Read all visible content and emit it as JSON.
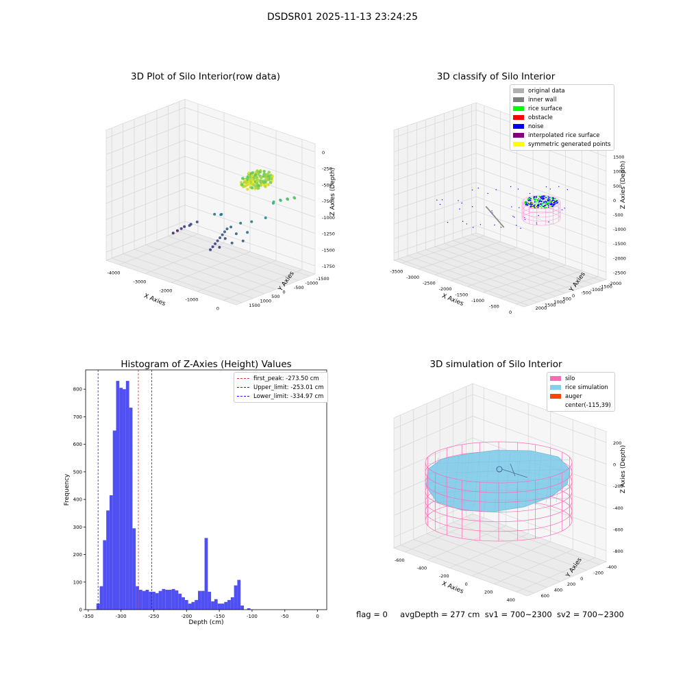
{
  "figure": {
    "suptitle": "DSDSR01 2025-11-13 23:24:25"
  },
  "colors": {
    "hist_bar": "#5050f2",
    "first_peak_line": "#e03030",
    "limit_line": "#2020e0",
    "pane": "#f2f2f2",
    "grid": "#d9d9d9",
    "silo": "#ff69b4",
    "rice": "#87ceeb",
    "auger": "#ff4500"
  },
  "chart_data": [
    {
      "id": "raw3d",
      "type": "scatter",
      "title": "3D Plot of Silo Interior(row data)",
      "xlabel": "X Axies",
      "ylabel": "Y Axies",
      "zlabel": "Z Axies (Depth)",
      "x_ticks": [
        "-4000",
        "-3000",
        "-2000",
        "-1000",
        "0"
      ],
      "y_ticks": [
        "-1500",
        "-1000",
        "-500",
        "0",
        "500",
        "1000",
        "1500"
      ],
      "z_ticks": [
        "-1750",
        "-1500",
        "-1250",
        "-1000",
        "-750",
        "-500",
        "-250",
        "0"
      ],
      "xlim": [
        -4200,
        300
      ],
      "ylim": [
        -1600,
        1700
      ],
      "zlim": [
        -1850,
        50
      ],
      "colormap": "viridis",
      "points": [
        [
          -3800,
          900,
          -1700
        ],
        [
          -3600,
          950,
          -1620
        ],
        [
          -3400,
          980,
          -1560
        ],
        [
          -3200,
          1000,
          -1500
        ],
        [
          -3700,
          600,
          -1680
        ],
        [
          -3500,
          700,
          -1600
        ],
        [
          -3300,
          800,
          -1540
        ],
        [
          -2600,
          1000,
          -1300
        ],
        [
          -2400,
          1050,
          -1280
        ],
        [
          -2300,
          900,
          -1250
        ],
        [
          -2000,
          800,
          -1400
        ],
        [
          -2000,
          700,
          -1430
        ],
        [
          -2000,
          600,
          -1460
        ],
        [
          -2000,
          500,
          -1490
        ],
        [
          -2000,
          400,
          -1520
        ],
        [
          -2000,
          300,
          -1550
        ],
        [
          -2000,
          200,
          -1580
        ],
        [
          -2000,
          100,
          -1610
        ],
        [
          -1950,
          900,
          -1380
        ],
        [
          -1900,
          600,
          -1500
        ],
        [
          -1850,
          300,
          -1580
        ],
        [
          -1700,
          1000,
          -1300
        ],
        [
          -1600,
          700,
          -1400
        ],
        [
          -1500,
          400,
          -1480
        ],
        [
          -1400,
          1100,
          -1250
        ],
        [
          -1300,
          800,
          -1350
        ],
        [
          -1200,
          500,
          -1420
        ],
        [
          -1000,
          1200,
          -1150
        ],
        [
          -900,
          1400,
          -950
        ],
        [
          -800,
          1300,
          -900
        ],
        [
          -700,
          1450,
          -880
        ],
        [
          -600,
          1350,
          -860
        ],
        [
          -500,
          1500,
          -840
        ],
        [
          -400,
          1400,
          -820
        ],
        [
          -300,
          1550,
          -800
        ],
        [
          -200,
          1450,
          -780
        ]
      ]
    },
    {
      "id": "classify3d",
      "type": "scatter",
      "title": "3D classify of Silo Interior",
      "xlabel": "X Axies",
      "ylabel": "Y Axies",
      "zlabel": "Z Axies (Depth)",
      "x_ticks": [
        "-3500",
        "-3000",
        "-2500",
        "-2000",
        "-1500",
        "-1000",
        "-500",
        "0"
      ],
      "y_ticks": [
        "-2000",
        "-1500",
        "-1000",
        "-500",
        "0",
        "500",
        "1000",
        "1500",
        "2000"
      ],
      "z_ticks": [
        "-2500",
        "-2000",
        "-1500",
        "-1000",
        "-500",
        "0",
        "500",
        "1000",
        "1500"
      ],
      "xlim": [
        -3800,
        300
      ],
      "ylim": [
        -2100,
        2200
      ],
      "zlim": [
        -2700,
        1600
      ],
      "legend": [
        {
          "label": "original data",
          "color": "#b0b0b0"
        },
        {
          "label": "inner wall",
          "color": "#808080"
        },
        {
          "label": "rice surface",
          "color": "#00ff00"
        },
        {
          "label": "obstacle",
          "color": "#ff0000"
        },
        {
          "label": "noise",
          "color": "#0000ff"
        },
        {
          "label": "interpolated rice surface",
          "color": "#800080"
        },
        {
          "label": "symmetric generated points",
          "color": "#ffff00"
        }
      ]
    },
    {
      "id": "histogram",
      "type": "bar",
      "title": "Histogram of Z-Axies (Height) Values",
      "xlabel": "Depth (cm)",
      "ylabel": "Frequency",
      "xlim": [
        -354,
        14
      ],
      "ylim": [
        0,
        870
      ],
      "x_ticks": [
        -350,
        -300,
        -250,
        -200,
        -150,
        -100,
        -50,
        0
      ],
      "y_ticks": [
        0,
        100,
        200,
        300,
        400,
        500,
        600,
        700,
        800
      ],
      "bin_start": -337.5,
      "bin_width": 5,
      "values": [
        22,
        85,
        252,
        360,
        415,
        650,
        830,
        805,
        800,
        830,
        733,
        295,
        85,
        72,
        68,
        72,
        65,
        65,
        60,
        68,
        75,
        72,
        72,
        75,
        70,
        58,
        45,
        35,
        22,
        28,
        35,
        68,
        68,
        260,
        65,
        30,
        38,
        22,
        22,
        28,
        35,
        45,
        88,
        108,
        15,
        0,
        5
      ],
      "reference_lines": [
        {
          "label": "first_peak: -273.50 cm",
          "x": -273.5,
          "kind": "first_peak"
        },
        {
          "label": "Upper_limit: -253.01 cm",
          "x": -253.01,
          "kind": "limit"
        },
        {
          "label": "Lower_limit: -334.97 cm",
          "x": -334.97,
          "kind": "limit"
        }
      ],
      "legend_position": "upper right"
    },
    {
      "id": "simulation3d",
      "type": "surface",
      "title": "3D simulation of Silo Interior",
      "xlabel": "X Axies",
      "ylabel": "Y Axies",
      "zlabel": "Z Axies (Depth)",
      "x_ticks": [
        "-600",
        "-400",
        "-200",
        "0",
        "200",
        "400"
      ],
      "y_ticks": [
        "-400",
        "-200",
        "0",
        "200",
        "400",
        "600"
      ],
      "z_ticks": [
        "-800",
        "-600",
        "-400",
        "-200",
        "0",
        "200"
      ],
      "xlim": [
        -650,
        450
      ],
      "ylim": [
        -450,
        650
      ],
      "zlim": [
        -850,
        300
      ],
      "legend": [
        {
          "label": "silo",
          "color": "#ff69b4"
        },
        {
          "label": "rice simulation",
          "color": "#87ceeb"
        },
        {
          "label": "auger",
          "color": "#ff4500"
        },
        {
          "label": "center(-115,39)",
          "color": ""
        }
      ]
    }
  ],
  "footer": {
    "flag": "flag = 0",
    "avg_depth": "avgDepth = 277 cm",
    "sv1": "sv1 = 700~2300",
    "sv2": "sv2 = 700~2300"
  }
}
